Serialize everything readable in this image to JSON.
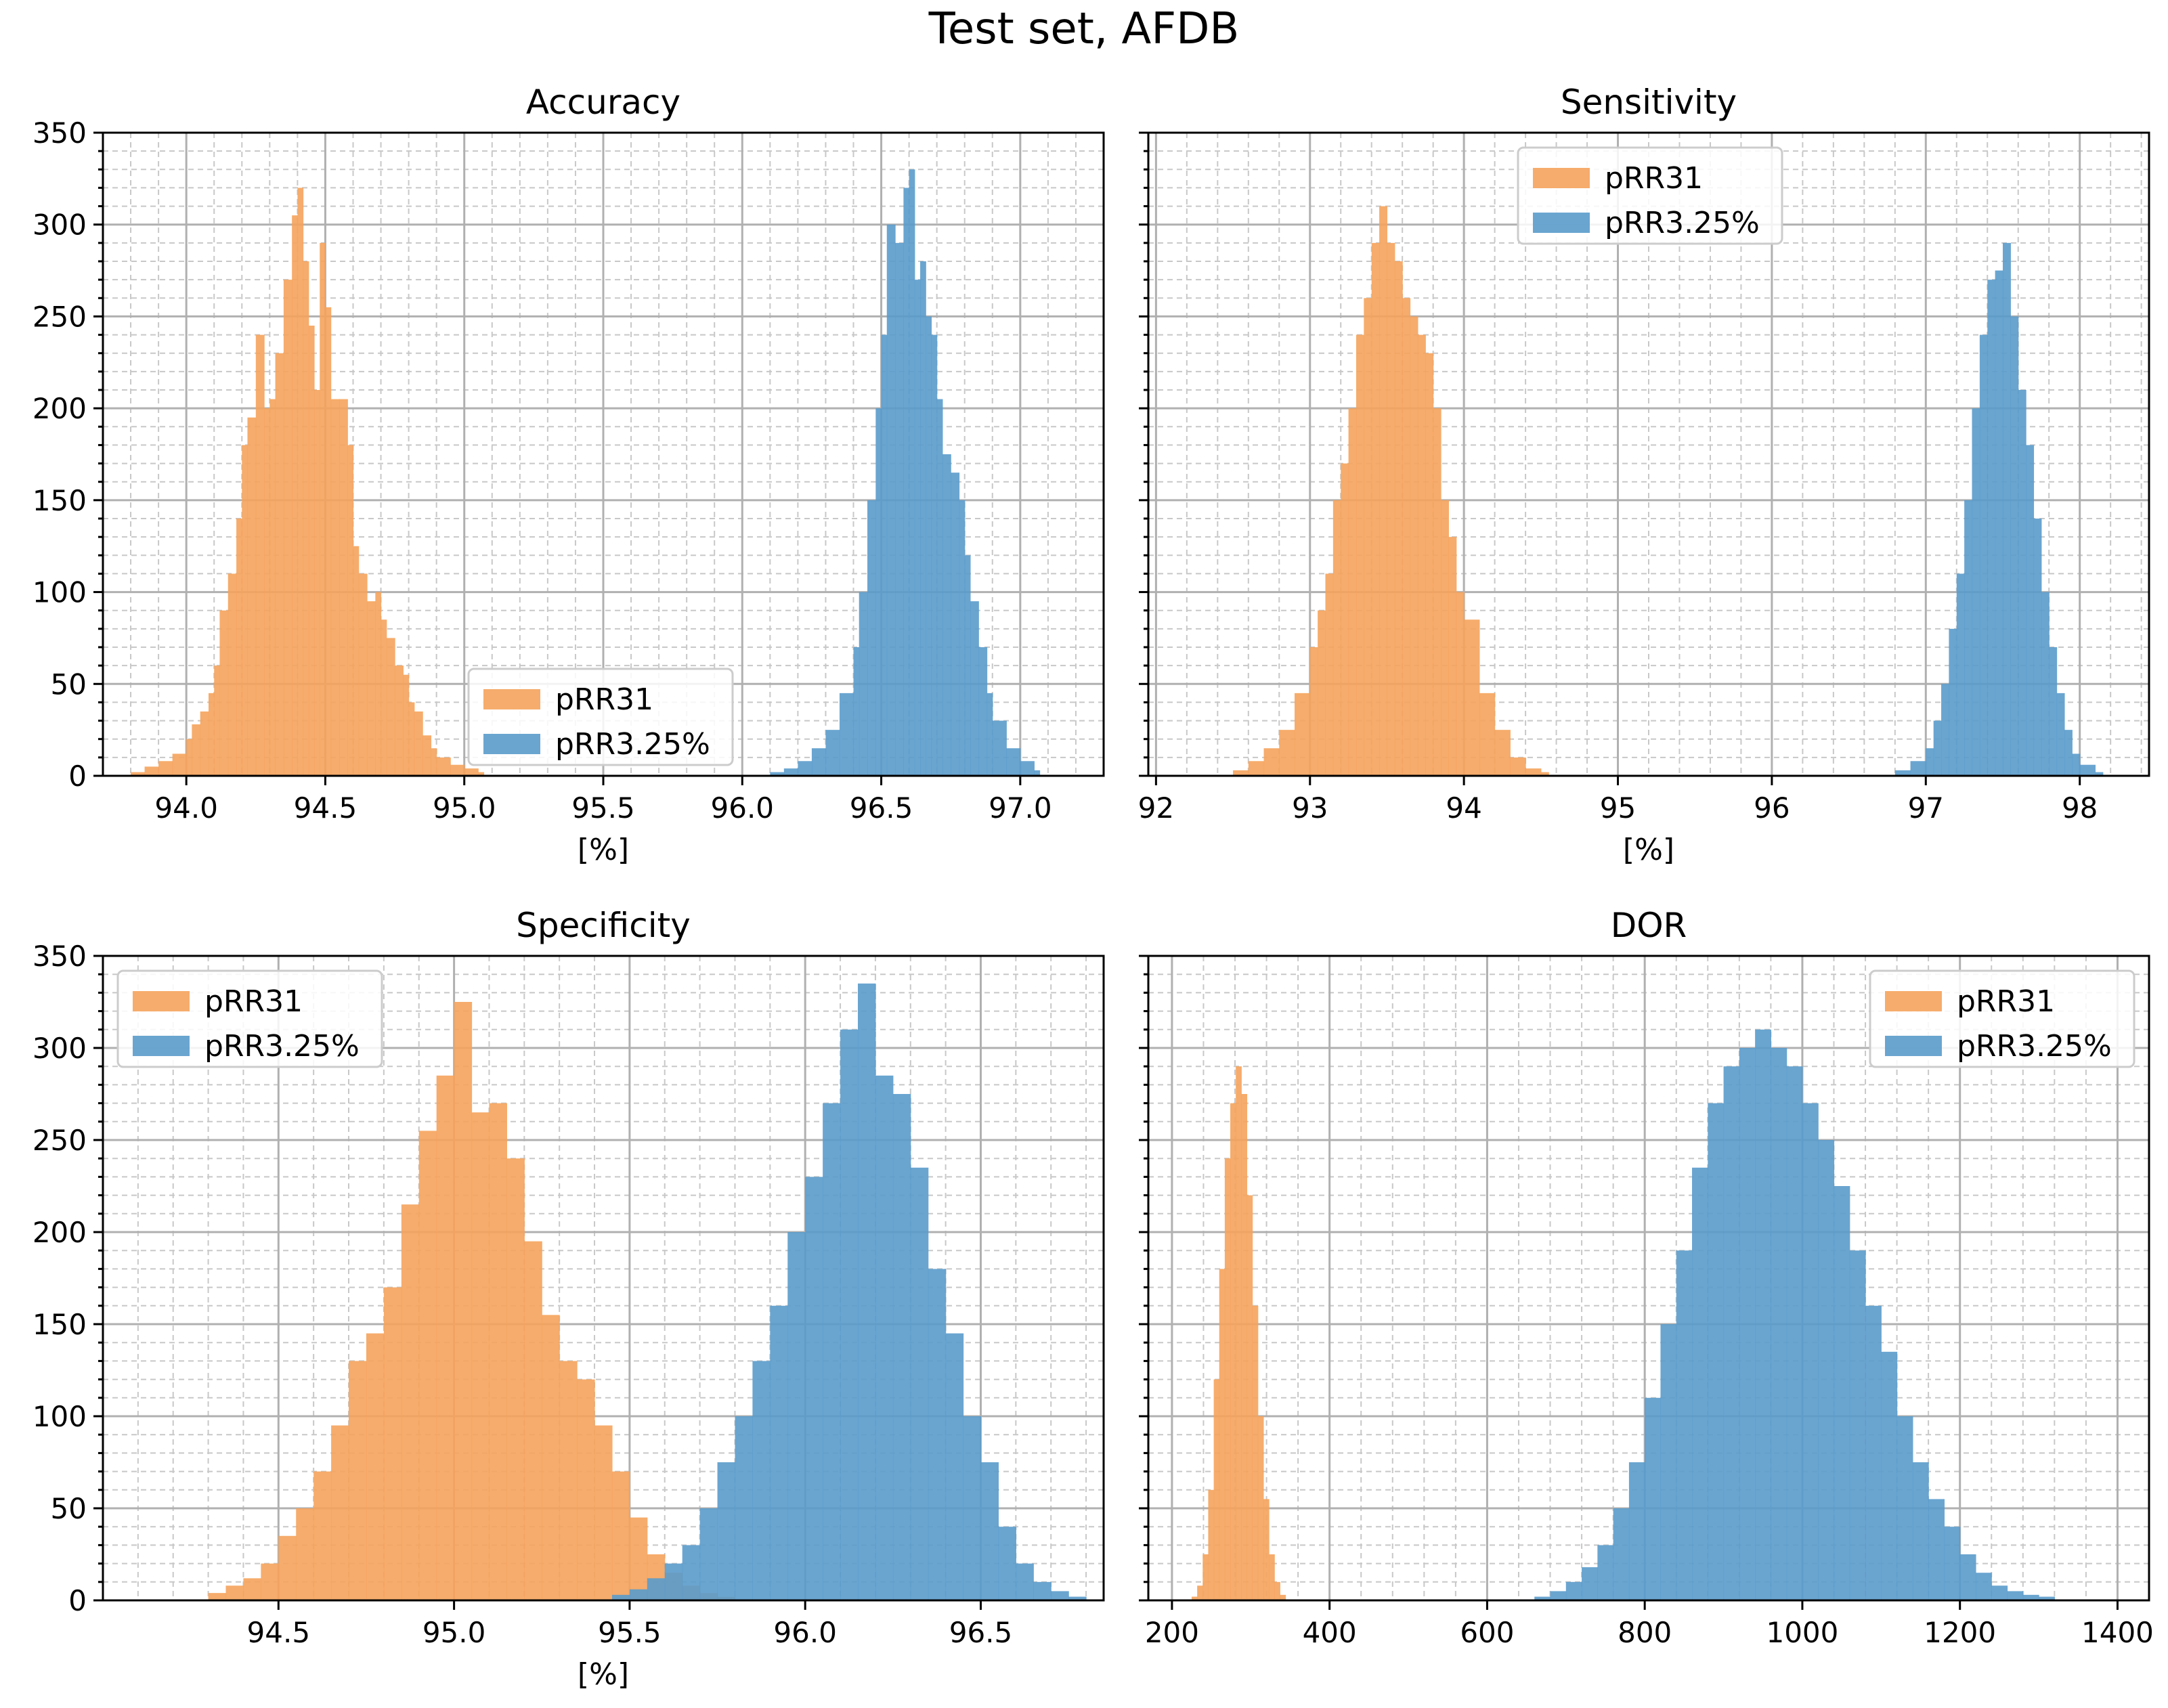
{
  "figure": {
    "title": "Test set, AFDB"
  },
  "colors": {
    "orange": "#f5a35c",
    "blue": "#5a9bcb"
  },
  "chart_data": [
    {
      "type": "bar",
      "title": "Accuracy",
      "xlabel": "[%]",
      "ylabel": "",
      "xlim": [
        93.7,
        97.3
      ],
      "ylim": [
        0,
        350
      ],
      "xticks": [
        "94.0",
        "94.5",
        "95.0",
        "95.5",
        "96.0",
        "96.5",
        "97.0"
      ],
      "yticks": [
        "0",
        "50",
        "100",
        "150",
        "200",
        "250",
        "300",
        "350"
      ],
      "grid": true,
      "legend": {
        "position": "lower-center",
        "entries": [
          "pRR31",
          "pRR3.25%"
        ]
      },
      "series": [
        {
          "name": "pRR31",
          "color": "#f5a35c",
          "x": [
            93.8,
            93.85,
            93.9,
            93.95,
            94.0,
            94.02,
            94.05,
            94.08,
            94.1,
            94.12,
            94.15,
            94.18,
            94.2,
            94.22,
            94.25,
            94.28,
            94.3,
            94.32,
            94.35,
            94.38,
            94.4,
            94.42,
            94.44,
            94.46,
            94.48,
            94.5,
            94.52,
            94.55,
            94.58,
            94.6,
            94.62,
            94.65,
            94.68,
            94.7,
            94.72,
            94.75,
            94.78,
            94.8,
            94.82,
            94.85,
            94.88,
            94.9,
            94.95,
            95.0,
            95.05
          ],
          "y": [
            2,
            5,
            8,
            12,
            20,
            28,
            35,
            45,
            60,
            90,
            110,
            140,
            180,
            195,
            240,
            200,
            205,
            230,
            270,
            305,
            320,
            280,
            245,
            210,
            290,
            255,
            205,
            205,
            180,
            125,
            110,
            95,
            100,
            85,
            75,
            60,
            55,
            40,
            35,
            22,
            15,
            10,
            6,
            4,
            2
          ]
        },
        {
          "name": "pRR3.25%",
          "color": "#5a9bcb",
          "x": [
            96.1,
            96.15,
            96.2,
            96.25,
            96.3,
            96.35,
            96.4,
            96.42,
            96.45,
            96.48,
            96.5,
            96.52,
            96.55,
            96.58,
            96.6,
            96.62,
            96.64,
            96.66,
            96.68,
            96.7,
            96.72,
            96.75,
            96.78,
            96.8,
            96.82,
            96.85,
            96.88,
            96.9,
            96.95,
            97.0,
            97.05
          ],
          "y": [
            2,
            4,
            8,
            15,
            25,
            45,
            70,
            100,
            150,
            200,
            240,
            300,
            290,
            320,
            330,
            270,
            280,
            250,
            240,
            205,
            175,
            165,
            150,
            120,
            95,
            70,
            45,
            30,
            15,
            8,
            3
          ]
        }
      ]
    },
    {
      "type": "bar",
      "title": "Sensitivity",
      "xlabel": "[%]",
      "ylabel": "",
      "xlim": [
        91.95,
        98.45
      ],
      "ylim": [
        0,
        350
      ],
      "xticks": [
        "92",
        "93",
        "94",
        "95",
        "96",
        "97",
        "98"
      ],
      "yticks": [],
      "grid": true,
      "legend": {
        "position": "upper-center",
        "entries": [
          "pRR31",
          "pRR3.25%"
        ]
      },
      "series": [
        {
          "name": "pRR31",
          "color": "#f5a35c",
          "x": [
            92.5,
            92.6,
            92.7,
            92.8,
            92.9,
            93.0,
            93.05,
            93.1,
            93.15,
            93.2,
            93.25,
            93.3,
            93.35,
            93.4,
            93.45,
            93.5,
            93.55,
            93.6,
            93.65,
            93.7,
            93.75,
            93.8,
            93.85,
            93.9,
            93.95,
            94.0,
            94.1,
            94.2,
            94.3,
            94.4,
            94.5
          ],
          "y": [
            3,
            8,
            15,
            25,
            45,
            70,
            90,
            110,
            150,
            170,
            200,
            240,
            260,
            290,
            310,
            290,
            280,
            260,
            250,
            240,
            230,
            200,
            150,
            130,
            100,
            85,
            45,
            25,
            10,
            4,
            2
          ]
        },
        {
          "name": "pRR3.25%",
          "color": "#5a9bcb",
          "x": [
            96.8,
            96.9,
            97.0,
            97.05,
            97.1,
            97.15,
            97.2,
            97.25,
            97.3,
            97.35,
            97.4,
            97.45,
            97.5,
            97.55,
            97.6,
            97.65,
            97.7,
            97.75,
            97.8,
            97.85,
            97.9,
            97.95,
            98.0,
            98.1
          ],
          "y": [
            3,
            8,
            15,
            30,
            50,
            80,
            110,
            150,
            200,
            240,
            270,
            275,
            290,
            250,
            210,
            180,
            140,
            100,
            70,
            45,
            25,
            12,
            6,
            2
          ]
        }
      ]
    },
    {
      "type": "bar",
      "title": "Specificity",
      "xlabel": "[%]",
      "ylabel": "",
      "xlim": [
        94.0,
        96.85
      ],
      "ylim": [
        0,
        350
      ],
      "xticks": [
        "94.5",
        "95.0",
        "95.5",
        "96.0",
        "96.5"
      ],
      "yticks": [
        "0",
        "50",
        "100",
        "150",
        "200",
        "250",
        "300",
        "350"
      ],
      "grid": true,
      "legend": {
        "position": "upper-left",
        "entries": [
          "pRR31",
          "pRR3.25%"
        ]
      },
      "series": [
        {
          "name": "pRR31",
          "color": "#f5a35c",
          "x": [
            94.3,
            94.35,
            94.4,
            94.45,
            94.5,
            94.55,
            94.6,
            94.65,
            94.7,
            94.75,
            94.8,
            94.85,
            94.9,
            94.95,
            95.0,
            95.05,
            95.1,
            95.15,
            95.2,
            95.25,
            95.3,
            95.35,
            95.4,
            95.45,
            95.5,
            95.55,
            95.6,
            95.65,
            95.7,
            95.75
          ],
          "y": [
            4,
            8,
            12,
            20,
            35,
            50,
            70,
            95,
            130,
            145,
            170,
            215,
            255,
            285,
            325,
            265,
            270,
            240,
            195,
            155,
            130,
            120,
            95,
            70,
            45,
            25,
            15,
            8,
            4,
            2
          ]
        },
        {
          "name": "pRR3.25%",
          "color": "#5a9bcb",
          "x": [
            95.45,
            95.5,
            95.55,
            95.6,
            95.65,
            95.7,
            95.75,
            95.8,
            95.85,
            95.9,
            95.95,
            96.0,
            96.05,
            96.1,
            96.15,
            96.2,
            96.25,
            96.3,
            96.35,
            96.4,
            96.45,
            96.5,
            96.55,
            96.6,
            96.65,
            96.7,
            96.75
          ],
          "y": [
            3,
            6,
            12,
            20,
            30,
            50,
            75,
            100,
            130,
            160,
            200,
            230,
            270,
            310,
            335,
            285,
            275,
            235,
            180,
            145,
            100,
            75,
            40,
            20,
            10,
            5,
            2
          ]
        }
      ]
    },
    {
      "type": "bar",
      "title": "DOR",
      "xlabel": "",
      "ylabel": "",
      "xlim": [
        170,
        1440
      ],
      "ylim": [
        0,
        350
      ],
      "xticks": [
        "200",
        "400",
        "600",
        "800",
        "1000",
        "1200",
        "1400"
      ],
      "yticks": [],
      "grid": true,
      "legend": {
        "position": "upper-right",
        "entries": [
          "pRR31",
          "pRR3.25%"
        ]
      },
      "series": [
        {
          "name": "pRR31",
          "color": "#f5a35c",
          "x": [
            225,
            232,
            239,
            246,
            253,
            260,
            267,
            274,
            281,
            288,
            295,
            302,
            309,
            316,
            323,
            330,
            337
          ],
          "y": [
            2,
            8,
            25,
            60,
            120,
            180,
            240,
            270,
            290,
            275,
            220,
            160,
            100,
            55,
            25,
            10,
            3
          ]
        },
        {
          "name": "pRR3.25%",
          "color": "#5a9bcb",
          "x": [
            660,
            680,
            700,
            720,
            740,
            760,
            780,
            800,
            820,
            840,
            860,
            880,
            900,
            920,
            940,
            960,
            980,
            1000,
            1020,
            1040,
            1060,
            1080,
            1100,
            1120,
            1140,
            1160,
            1180,
            1200,
            1220,
            1240,
            1260,
            1280,
            1300
          ],
          "y": [
            2,
            5,
            10,
            18,
            30,
            50,
            75,
            110,
            150,
            190,
            235,
            270,
            290,
            300,
            310,
            300,
            290,
            270,
            250,
            225,
            190,
            160,
            135,
            100,
            75,
            55,
            40,
            25,
            15,
            8,
            5,
            3,
            2
          ]
        }
      ]
    }
  ]
}
